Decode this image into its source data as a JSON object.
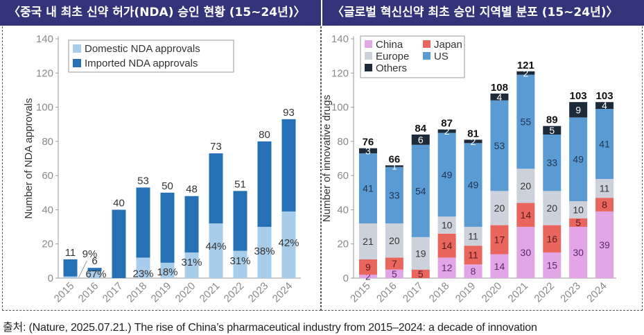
{
  "headers": {
    "left": "〈중국 내 최초 신약 허가(NDA) 승인 현황 (15~24년)〉",
    "right": "〈글로벌 혁신신약 최초 승인 지역별 분포 (15~24년)〉"
  },
  "footer": "출처: (Nature, 2025.07.21.) The rise of China’s pharmaceutical industry from 2015–2024: a decade of innovation",
  "chart_data": [
    {
      "type": "bar",
      "stacked": true,
      "title": "중국 내 최초 신약 허가(NDA) 승인 현황 (15~24년)",
      "xlabel": "",
      "ylabel": "Number of NDA approvals",
      "ylim": [
        0,
        140
      ],
      "yticks": [
        0,
        20,
        40,
        60,
        80,
        100,
        120,
        140
      ],
      "grid": false,
      "legend_position": "top-left",
      "categories": [
        "2015",
        "2016",
        "2017",
        "2018",
        "2019",
        "2020",
        "2021",
        "2022",
        "2023",
        "2024"
      ],
      "totals": [
        11,
        6,
        40,
        53,
        50,
        48,
        73,
        51,
        80,
        93
      ],
      "domestic_share_labels": [
        "9%",
        "67%",
        "",
        "23%",
        "18%",
        "31%",
        "44%",
        "31%",
        "38%",
        "42%"
      ],
      "series": [
        {
          "name": "Domestic NDA approvals",
          "color": "#a8cdea",
          "values": [
            1,
            4,
            0,
            12,
            9,
            15,
            32,
            16,
            30,
            39
          ]
        },
        {
          "name": "Imported NDA approvals",
          "color": "#2670b5",
          "values": [
            10,
            2,
            40,
            41,
            41,
            33,
            41,
            35,
            50,
            54
          ]
        }
      ]
    },
    {
      "type": "bar",
      "stacked": true,
      "title": "글로벌 혁신신약 최초 승인 지역별 분포 (15~24년)",
      "xlabel": "",
      "ylabel": "Number of innovative drugs",
      "ylim": [
        0,
        140
      ],
      "yticks": [
        0,
        20,
        40,
        60,
        80,
        100,
        120,
        140
      ],
      "grid": false,
      "legend_position": "top-left",
      "categories": [
        "2015",
        "2016",
        "2017",
        "2018",
        "2019",
        "2020",
        "2021",
        "2022",
        "2023",
        "2024"
      ],
      "totals": [
        76,
        66,
        84,
        87,
        81,
        108,
        121,
        89,
        103,
        103
      ],
      "legend_order": [
        "China",
        "Japan",
        "Europe",
        "US",
        "Others"
      ],
      "series": [
        {
          "name": "China",
          "color": "#e2a6e6",
          "label_color": "#5a2a6a",
          "values": [
            2,
            5,
            0,
            12,
            8,
            14,
            30,
            15,
            30,
            39
          ]
        },
        {
          "name": "Japan",
          "color": "#e9665f",
          "label_color": "#5a1a1a",
          "values": [
            9,
            7,
            5,
            14,
            11,
            17,
            14,
            16,
            5,
            8
          ]
        },
        {
          "name": "Europe",
          "color": "#cdd1dc",
          "label_color": "#333333",
          "values": [
            21,
            20,
            19,
            10,
            11,
            20,
            20,
            20,
            10,
            11
          ]
        },
        {
          "name": "US",
          "color": "#5b9bd3",
          "label_color": "#1f3550",
          "values": [
            41,
            33,
            54,
            49,
            49,
            53,
            55,
            33,
            49,
            41
          ]
        },
        {
          "name": "Others",
          "color": "#1c2a3a",
          "label_color": "#ffffff",
          "values": [
            3,
            1,
            6,
            2,
            2,
            4,
            2,
            5,
            9,
            4
          ]
        }
      ]
    }
  ]
}
